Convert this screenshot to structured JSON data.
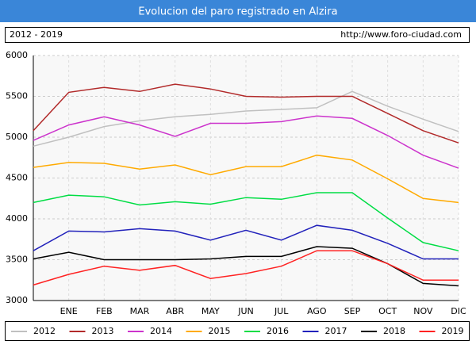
{
  "chart_data": {
    "type": "line",
    "title": "Evolucion del paro registrado en Alzira",
    "subtitle": "2012 - 2019",
    "source": "http://www.foro-ciudad.com",
    "categories": [
      null,
      "ENE",
      "FEB",
      "MAR",
      "ABR",
      "MAY",
      "JUN",
      "JUL",
      "AGO",
      "SEP",
      "OCT",
      "NOV",
      "DIC"
    ],
    "ylim": [
      3000,
      6000
    ],
    "yticks": [
      3000,
      3500,
      4000,
      4500,
      5000,
      5500,
      6000
    ],
    "grid": true,
    "series": [
      {
        "name": "2012",
        "color": "#c0c0c0",
        "values": [
          4890,
          5000,
          5130,
          5200,
          5250,
          5280,
          5320,
          5340,
          5360,
          5560,
          5380,
          5220,
          5070
        ]
      },
      {
        "name": "2013",
        "color": "#b22a2a",
        "values": [
          5080,
          5550,
          5610,
          5560,
          5650,
          5590,
          5500,
          5490,
          5500,
          5500,
          5290,
          5080,
          4930
        ]
      },
      {
        "name": "2014",
        "color": "#cc33cc",
        "values": [
          4960,
          5150,
          5250,
          5150,
          5010,
          5170,
          5170,
          5190,
          5260,
          5230,
          5020,
          4780,
          4620
        ]
      },
      {
        "name": "2015",
        "color": "#ffaa00",
        "values": [
          4630,
          4690,
          4680,
          4610,
          4660,
          4540,
          4640,
          4640,
          4780,
          4720,
          4490,
          4250,
          4200
        ]
      },
      {
        "name": "2016",
        "color": "#00dd44",
        "values": [
          4200,
          4290,
          4270,
          4170,
          4210,
          4180,
          4260,
          4240,
          4320,
          4320,
          4010,
          3710,
          3610
        ]
      },
      {
        "name": "2017",
        "color": "#2222bb",
        "values": [
          3610,
          3850,
          3840,
          3880,
          3850,
          3740,
          3860,
          3740,
          3920,
          3860,
          3700,
          3510,
          3510
        ]
      },
      {
        "name": "2018",
        "color": "#000000",
        "values": [
          3510,
          3590,
          3500,
          3500,
          3500,
          3510,
          3540,
          3540,
          3660,
          3640,
          3450,
          3210,
          3180
        ]
      },
      {
        "name": "2019",
        "color": "#ff2222",
        "values": [
          3190,
          3320,
          3420,
          3370,
          3430,
          3270,
          3330,
          3420,
          3610,
          3610,
          3450,
          3250,
          3250
        ]
      }
    ]
  }
}
